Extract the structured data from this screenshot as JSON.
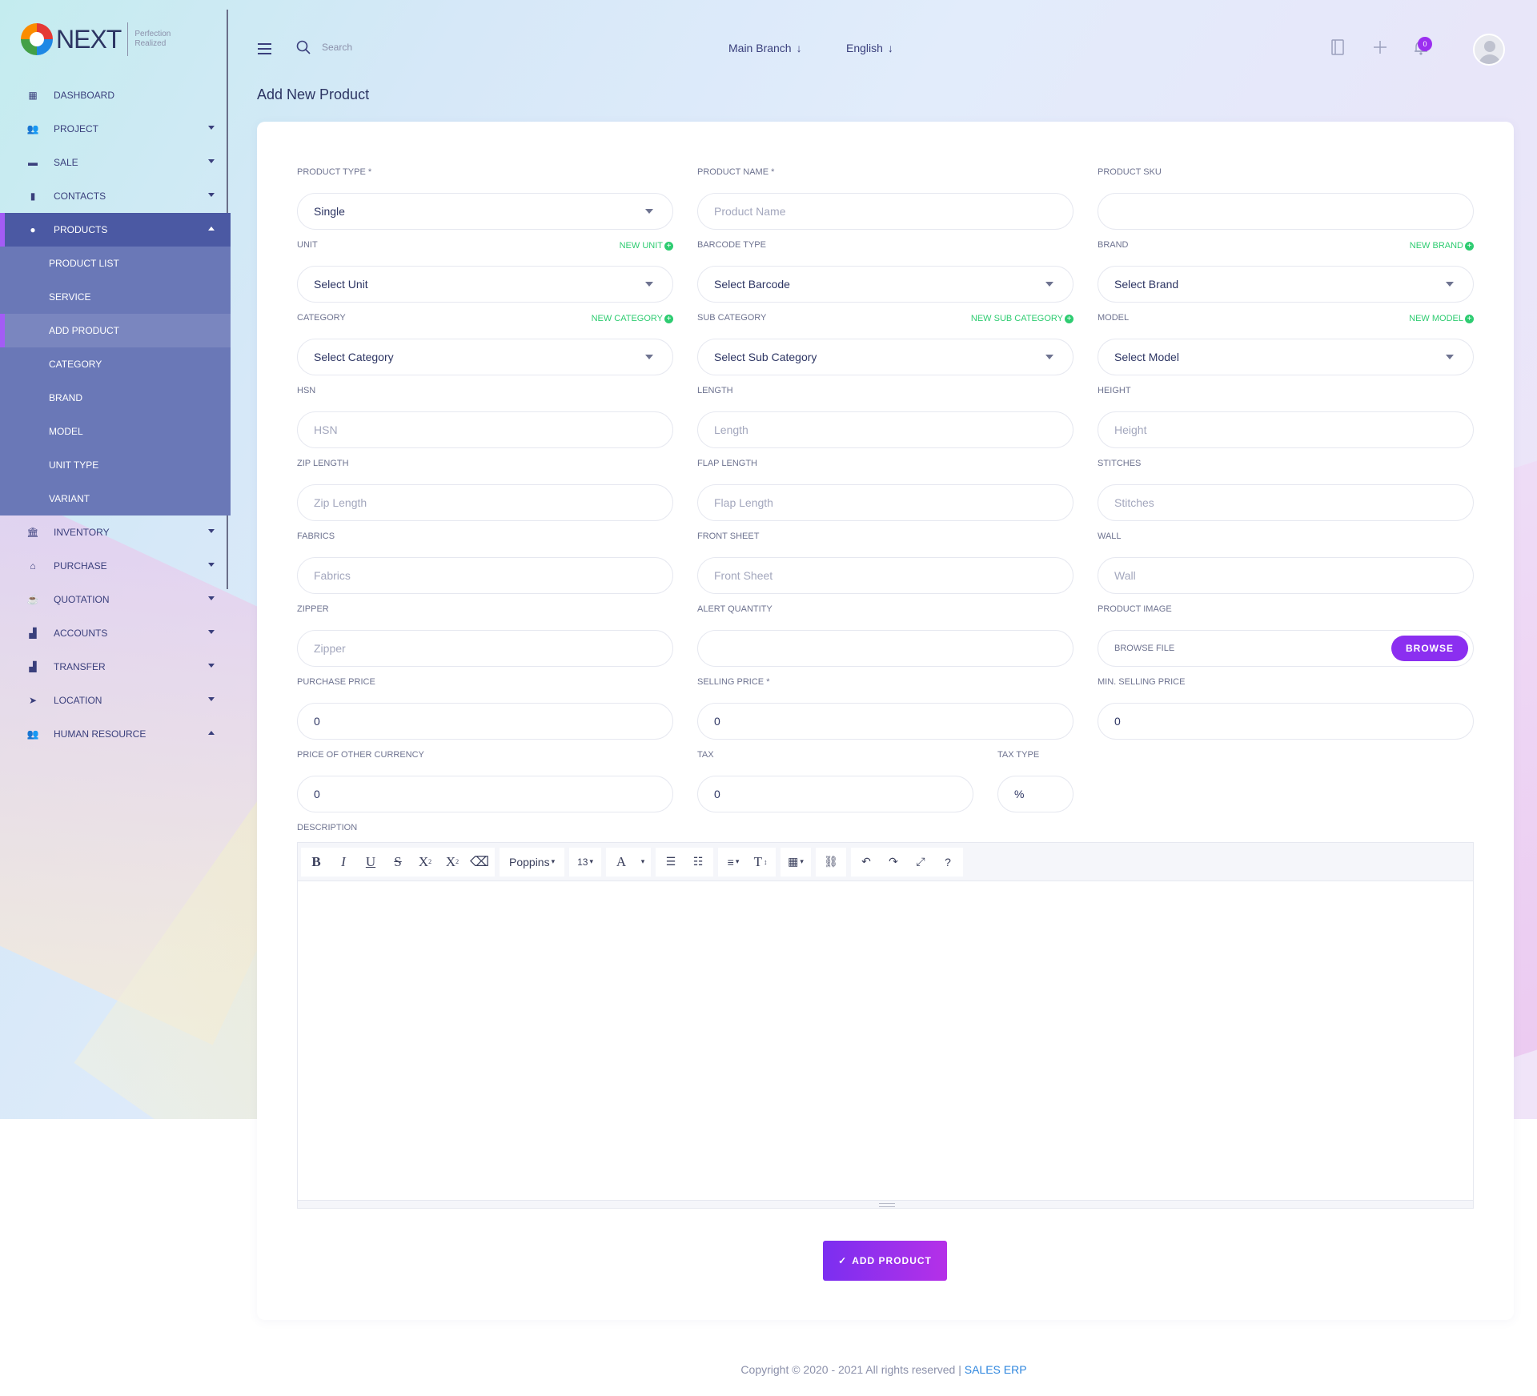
{
  "brand": {
    "name": "NEXT",
    "tagline1": "Perfection",
    "tagline2": "Realized"
  },
  "header": {
    "search_placeholder": "Search",
    "branch": "Main Branch",
    "language": "English",
    "notification_count": "0"
  },
  "sidebar": {
    "items": [
      {
        "label": "DASHBOARD",
        "icon": "grid-icon"
      },
      {
        "label": "PROJECT",
        "icon": "users-icon"
      },
      {
        "label": "SALE",
        "icon": "box-icon"
      },
      {
        "label": "CONTACTS",
        "icon": "file-icon"
      },
      {
        "label": "PRODUCTS",
        "icon": "product-icon"
      },
      {
        "label": "INVENTORY",
        "icon": "bank-icon"
      },
      {
        "label": "PURCHASE",
        "icon": "store-icon"
      },
      {
        "label": "QUOTATION",
        "icon": "coffee-icon"
      },
      {
        "label": "ACCOUNTS",
        "icon": "chart-icon"
      },
      {
        "label": "TRANSFER",
        "icon": "chart-icon"
      },
      {
        "label": "LOCATION",
        "icon": "location-arrow-icon"
      },
      {
        "label": "HUMAN RESOURCE",
        "icon": "users-icon"
      }
    ],
    "sub_items": [
      "PRODUCT LIST",
      "SERVICE",
      "ADD PRODUCT",
      "CATEGORY",
      "BRAND",
      "MODEL",
      "UNIT TYPE",
      "VARIANT"
    ]
  },
  "page": {
    "title": "Add New Product"
  },
  "form": {
    "product_type": {
      "label": "PRODUCT TYPE *",
      "value": "Single"
    },
    "product_name": {
      "label": "PRODUCT NAME *",
      "placeholder": "Product Name"
    },
    "product_sku": {
      "label": "PRODUCT SKU",
      "value": ""
    },
    "unit": {
      "label": "UNIT",
      "new": "NEW UNIT",
      "value": "Select Unit"
    },
    "barcode_type": {
      "label": "BARCODE TYPE",
      "value": "Select Barcode"
    },
    "brand": {
      "label": "BRAND",
      "new": "NEW BRAND",
      "value": "Select Brand"
    },
    "category": {
      "label": "CATEGORY",
      "new": "NEW CATEGORY",
      "value": "Select Category"
    },
    "sub_category": {
      "label": "SUB CATEGORY",
      "new": "NEW SUB CATEGORY",
      "value": "Select Sub Category"
    },
    "model": {
      "label": "MODEL",
      "new": "NEW MODEL",
      "value": "Select Model"
    },
    "hsn": {
      "label": "HSN",
      "placeholder": "HSN"
    },
    "length": {
      "label": "LENGTH",
      "placeholder": "Length"
    },
    "height": {
      "label": "HEIGHT",
      "placeholder": "Height"
    },
    "zip_length": {
      "label": "ZIP LENGTH",
      "placeholder": "Zip Length"
    },
    "flap_length": {
      "label": "FLAP LENGTH",
      "placeholder": "Flap Length"
    },
    "stitches": {
      "label": "STITCHES",
      "placeholder": "Stitches"
    },
    "fabrics": {
      "label": "FABRICS",
      "placeholder": "Fabrics"
    },
    "front_sheet": {
      "label": "FRONT SHEET",
      "placeholder": "Front Sheet"
    },
    "wall": {
      "label": "WALL",
      "placeholder": "Wall"
    },
    "zipper": {
      "label": "ZIPPER",
      "placeholder": "Zipper"
    },
    "alert_quantity": {
      "label": "ALERT QUANTITY",
      "value": ""
    },
    "product_image": {
      "label": "PRODUCT IMAGE",
      "file_label": "BROWSE FILE",
      "button": "BROWSE"
    },
    "purchase_price": {
      "label": "PURCHASE PRICE",
      "value": "0"
    },
    "selling_price": {
      "label": "SELLING PRICE *",
      "value": "0"
    },
    "min_selling_price": {
      "label": "MIN. SELLING PRICE",
      "value": "0"
    },
    "price_other_currency": {
      "label": "PRICE OF OTHER CURRENCY",
      "value": "0"
    },
    "tax": {
      "label": "TAX",
      "value": "0"
    },
    "tax_type": {
      "label": "TAX TYPE",
      "value": "%"
    },
    "description": {
      "label": "DESCRIPTION"
    }
  },
  "editor": {
    "font": "Poppins",
    "size": "13"
  },
  "submit": {
    "label": "ADD PRODUCT",
    "check": "✓"
  },
  "footer": {
    "text": "Copyright © 2020 - 2021 All rights reserved | ",
    "link": "SALES ERP"
  },
  "colors": {
    "accent": "#8b2ff0",
    "sidebar_active": "#4b59a3",
    "sidebar_sub": "#6a78b7",
    "new_link": "#2ecc71"
  }
}
